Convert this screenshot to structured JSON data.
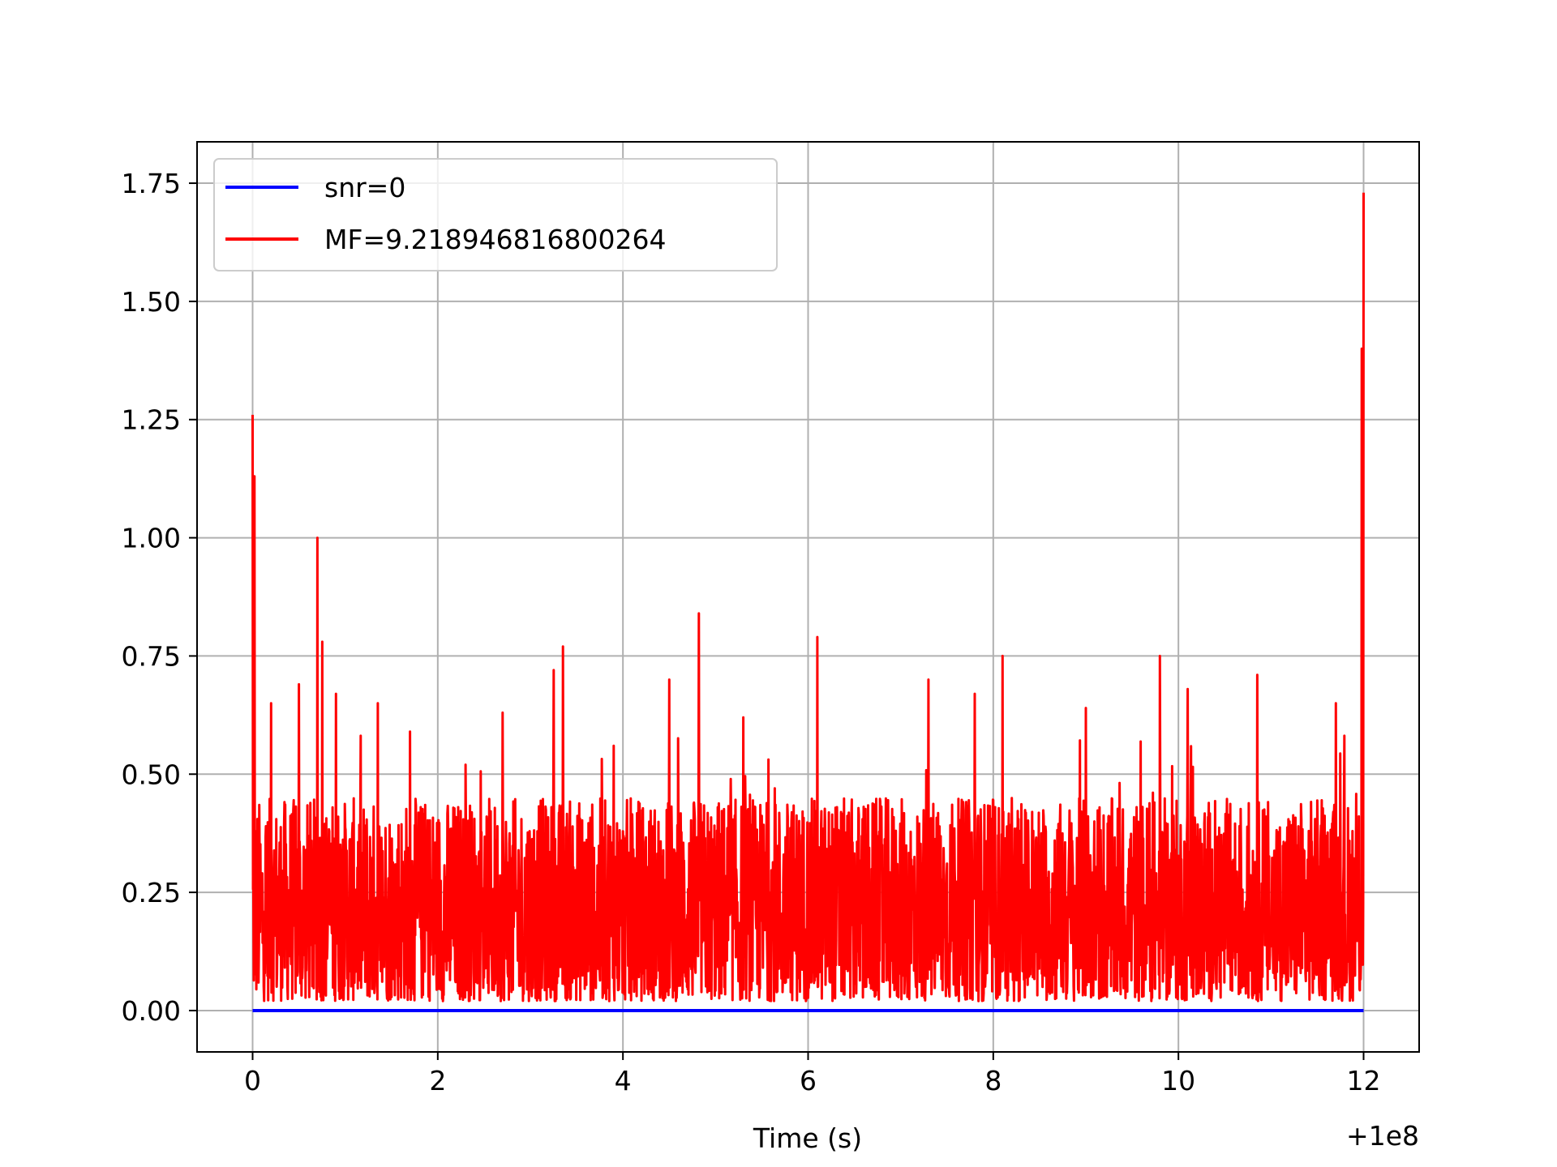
{
  "chart_data": {
    "type": "line",
    "title": "",
    "xlabel": "Time (s)",
    "ylabel": "",
    "x_offset_label": "+1e8",
    "xlim": [
      -0.6,
      12.6
    ],
    "ylim": [
      -0.0875,
      1.8375
    ],
    "xticks": [
      0,
      2,
      4,
      6,
      8,
      10,
      12
    ],
    "xtick_labels": [
      "0",
      "2",
      "4",
      "6",
      "8",
      "10",
      "12"
    ],
    "yticks": [
      0.0,
      0.25,
      0.5,
      0.75,
      1.0,
      1.25,
      1.5,
      1.75
    ],
    "ytick_labels": [
      "0.00",
      "0.25",
      "0.50",
      "0.75",
      "1.00",
      "1.25",
      "1.50",
      "1.75"
    ],
    "grid": true,
    "legend_position": "top-left",
    "series": [
      {
        "name": "snr=0",
        "color": "#0000ff",
        "x": [
          0,
          12
        ],
        "y": [
          0,
          0
        ]
      },
      {
        "name": "MF=9.218946816800264",
        "color": "#ff0000",
        "noise_band": [
          0.02,
          0.45
        ],
        "peaks": [
          {
            "x": 0.0,
            "y": 1.26
          },
          {
            "x": 0.02,
            "y": 1.13
          },
          {
            "x": 0.2,
            "y": 0.65
          },
          {
            "x": 0.5,
            "y": 0.69
          },
          {
            "x": 0.7,
            "y": 1.0
          },
          {
            "x": 0.75,
            "y": 0.78
          },
          {
            "x": 0.9,
            "y": 0.67
          },
          {
            "x": 1.35,
            "y": 0.65
          },
          {
            "x": 1.7,
            "y": 0.59
          },
          {
            "x": 2.3,
            "y": 0.52
          },
          {
            "x": 2.7,
            "y": 0.63
          },
          {
            "x": 3.25,
            "y": 0.72
          },
          {
            "x": 3.35,
            "y": 0.77
          },
          {
            "x": 3.9,
            "y": 0.56
          },
          {
            "x": 4.5,
            "y": 0.7
          },
          {
            "x": 4.82,
            "y": 0.84
          },
          {
            "x": 5.3,
            "y": 0.62
          },
          {
            "x": 6.1,
            "y": 0.79
          },
          {
            "x": 7.3,
            "y": 0.7
          },
          {
            "x": 7.8,
            "y": 0.67
          },
          {
            "x": 8.1,
            "y": 0.75
          },
          {
            "x": 9.0,
            "y": 0.64
          },
          {
            "x": 9.8,
            "y": 0.75
          },
          {
            "x": 10.1,
            "y": 0.68
          },
          {
            "x": 10.85,
            "y": 0.71
          },
          {
            "x": 11.7,
            "y": 0.65
          },
          {
            "x": 12.0,
            "y": 1.73
          },
          {
            "x": 11.98,
            "y": 1.4
          }
        ]
      }
    ]
  }
}
